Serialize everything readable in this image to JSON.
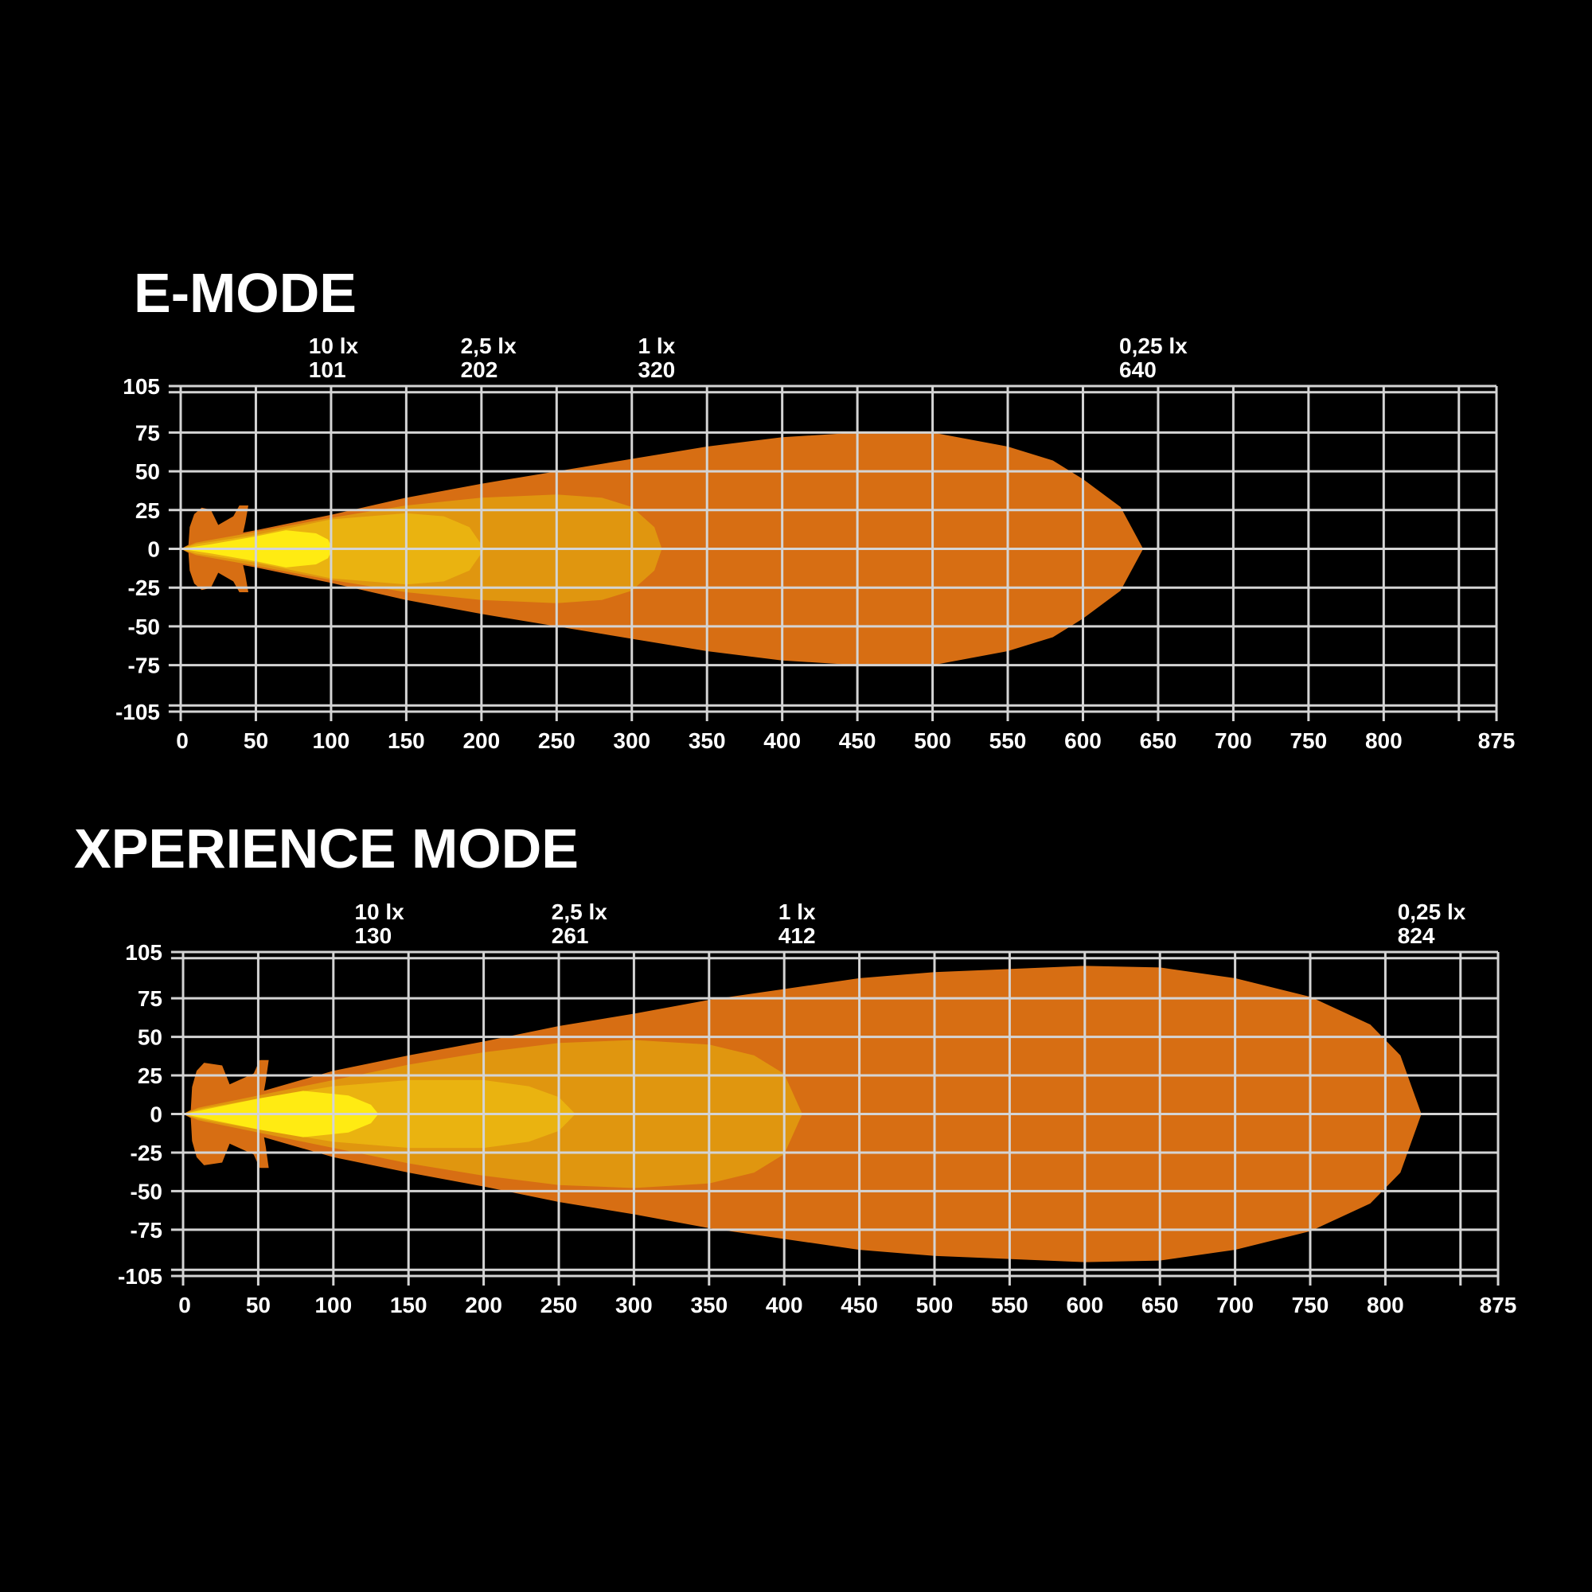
{
  "chart_data": [
    {
      "type": "area",
      "title": "E-MODE",
      "xlim": [
        0,
        875
      ],
      "ylim": [
        -105,
        105
      ],
      "x_ticks": [
        "0",
        "50",
        "100",
        "150",
        "200",
        "250",
        "300",
        "350",
        "400",
        "450",
        "500",
        "550",
        "600",
        "650",
        "700",
        "750",
        "800",
        "875"
      ],
      "y_ticks": [
        "105",
        "75",
        "50",
        "25",
        "0",
        "-25",
        "-50",
        "-75",
        "-105"
      ],
      "grid": true,
      "annotations": [
        {
          "label": "10 lx",
          "value": "101",
          "x": 101
        },
        {
          "label": "2,5 lx",
          "value": "202",
          "x": 202
        },
        {
          "label": "1 lx",
          "value": "320",
          "x": 320
        },
        {
          "label": "0,25 lx",
          "value": "640",
          "x": 640
        }
      ],
      "series": [
        {
          "name": "0,25 lx",
          "color": "#D76E13",
          "half_width": [
            [
              0,
              0
            ],
            [
              10,
              5
            ],
            [
              50,
              12
            ],
            [
              100,
              22
            ],
            [
              150,
              33
            ],
            [
              200,
              42
            ],
            [
              250,
              50
            ],
            [
              300,
              58
            ],
            [
              350,
              66
            ],
            [
              400,
              72
            ],
            [
              450,
              75
            ],
            [
              500,
              75
            ],
            [
              550,
              66
            ],
            [
              580,
              57
            ],
            [
              600,
              45
            ],
            [
              625,
              27
            ],
            [
              640,
              0
            ]
          ]
        },
        {
          "name": "1 lx",
          "color": "#E0960F",
          "half_width": [
            [
              0,
              0
            ],
            [
              10,
              4
            ],
            [
              50,
              11
            ],
            [
              100,
              20
            ],
            [
              150,
              28
            ],
            [
              200,
              33
            ],
            [
              250,
              35
            ],
            [
              280,
              33
            ],
            [
              300,
              27
            ],
            [
              315,
              14
            ],
            [
              320,
              0
            ]
          ]
        },
        {
          "name": "2,5 lx",
          "color": "#EAB310",
          "half_width": [
            [
              0,
              0
            ],
            [
              10,
              3
            ],
            [
              50,
              9
            ],
            [
              100,
              19
            ],
            [
              150,
              23
            ],
            [
              175,
              21
            ],
            [
              192,
              14
            ],
            [
              202,
              0
            ]
          ]
        },
        {
          "name": "10 lx",
          "color": "#FFEB12",
          "half_width": [
            [
              0,
              0
            ],
            [
              20,
              3
            ],
            [
              50,
              8
            ],
            [
              70,
              12
            ],
            [
              90,
              10
            ],
            [
              98,
              6
            ],
            [
              101,
              0
            ]
          ]
        }
      ],
      "near_field_color": "#D76E13",
      "near_field_extent": [
        5,
        45,
        28
      ]
    },
    {
      "type": "area",
      "title": "XPERIENCE MODE",
      "xlim": [
        0,
        875
      ],
      "ylim": [
        -105,
        105
      ],
      "x_ticks": [
        "0",
        "50",
        "100",
        "150",
        "200",
        "250",
        "300",
        "350",
        "400",
        "450",
        "500",
        "550",
        "600",
        "650",
        "700",
        "750",
        "800",
        "875"
      ],
      "y_ticks": [
        "105",
        "75",
        "50",
        "25",
        "0",
        "-25",
        "-50",
        "-75",
        "-105"
      ],
      "grid": true,
      "annotations": [
        {
          "label": "10 lx",
          "value": "130",
          "x": 130
        },
        {
          "label": "2,5 lx",
          "value": "261",
          "x": 261
        },
        {
          "label": "1 lx",
          "value": "412",
          "x": 412
        },
        {
          "label": "0,25 lx",
          "value": "824",
          "x": 824
        }
      ],
      "series": [
        {
          "name": "0,25 lx",
          "color": "#D76E13",
          "half_width": [
            [
              0,
              0
            ],
            [
              10,
              5
            ],
            [
              50,
              14
            ],
            [
              100,
              28
            ],
            [
              150,
              38
            ],
            [
              200,
              47
            ],
            [
              250,
              57
            ],
            [
              300,
              65
            ],
            [
              350,
              74
            ],
            [
              400,
              81
            ],
            [
              450,
              88
            ],
            [
              500,
              92
            ],
            [
              600,
              96
            ],
            [
              650,
              95
            ],
            [
              700,
              88
            ],
            [
              750,
              76
            ],
            [
              790,
              58
            ],
            [
              810,
              38
            ],
            [
              824,
              0
            ]
          ]
        },
        {
          "name": "1 lx",
          "color": "#E0960F",
          "half_width": [
            [
              0,
              0
            ],
            [
              10,
              4
            ],
            [
              50,
              12
            ],
            [
              100,
              22
            ],
            [
              150,
              32
            ],
            [
              200,
              40
            ],
            [
              250,
              46
            ],
            [
              300,
              48
            ],
            [
              350,
              45
            ],
            [
              380,
              38
            ],
            [
              400,
              26
            ],
            [
              412,
              0
            ]
          ]
        },
        {
          "name": "2,5 lx",
          "color": "#EAB310",
          "half_width": [
            [
              0,
              0
            ],
            [
              10,
              3
            ],
            [
              50,
              10
            ],
            [
              100,
              18
            ],
            [
              150,
              22
            ],
            [
              200,
              22
            ],
            [
              230,
              18
            ],
            [
              250,
              11
            ],
            [
              261,
              0
            ]
          ]
        },
        {
          "name": "10 lx",
          "color": "#FFEB12",
          "half_width": [
            [
              0,
              0
            ],
            [
              20,
              4
            ],
            [
              50,
              10
            ],
            [
              80,
              15
            ],
            [
              110,
              12
            ],
            [
              125,
              6
            ],
            [
              130,
              0
            ]
          ]
        }
      ],
      "near_field_color": "#D76E13",
      "near_field_extent": [
        5,
        57,
        35
      ]
    }
  ]
}
